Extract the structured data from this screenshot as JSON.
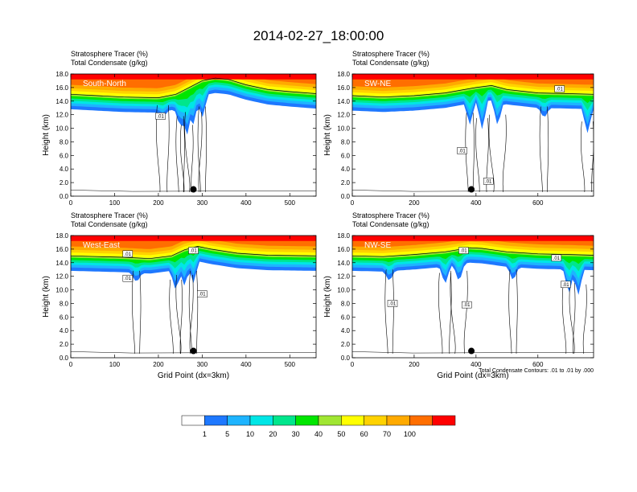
{
  "page_title": "2014-02-27_18:00:00",
  "colors": {
    "levels": [
      "#ffffff",
      "#1e78ff",
      "#1eb4ff",
      "#00e6e6",
      "#00e68c",
      "#00e600",
      "#a0e632",
      "#ffff00",
      "#ffd200",
      "#ffaa00",
      "#ff6e00",
      "#ff0000"
    ]
  },
  "colorbar": {
    "ticks": [
      "1",
      "5",
      "10",
      "20",
      "30",
      "40",
      "50",
      "60",
      "70",
      "100"
    ]
  },
  "footnote": "Total Condensate Contours: .01 to .01 by .000",
  "chart_data": [
    {
      "type": "heatmap",
      "panel_label": "South-North",
      "header_line1": "Stratosphere Tracer   (%)",
      "header_line2": "Total Condensate   (g/kg)",
      "ylabel": "Height (km)",
      "xlabel": "",
      "xlim": [
        0,
        560
      ],
      "ylim": [
        0,
        18
      ],
      "xticks": [
        "0",
        "100",
        "200",
        "300",
        "400",
        "500"
      ],
      "xtick_values": [
        0,
        100,
        200,
        300,
        400,
        500
      ],
      "yticks": [
        "0.0",
        "2.0",
        "4.0",
        "6.0",
        "8.0",
        "10.0",
        "12.0",
        "14.0",
        "16.0",
        "18.0"
      ],
      "marker": {
        "x": 280,
        "y": 1.0
      },
      "tropopause": [
        [
          0,
          14.6
        ],
        [
          60,
          14.4
        ],
        [
          120,
          14.2
        ],
        [
          200,
          14.1
        ],
        [
          240,
          14.6
        ],
        [
          270,
          15.6
        ],
        [
          300,
          16.6
        ],
        [
          330,
          17.0
        ],
        [
          360,
          16.8
        ],
        [
          400,
          16.0
        ],
        [
          450,
          15.3
        ],
        [
          500,
          15.0
        ],
        [
          560,
          14.7
        ]
      ],
      "dips": [
        [
          250,
          11.8
        ],
        [
          265,
          10.5
        ],
        [
          280,
          12.4
        ],
        [
          300,
          13.2
        ],
        [
          210,
          13.4
        ]
      ],
      "contour_labels": [
        {
          "text": ".01",
          "x": 205,
          "y": 11.8
        }
      ]
    },
    {
      "type": "heatmap",
      "panel_label": "SW-NE",
      "header_line1": "Stratosphere Tracer   (%)",
      "header_line2": "Total Condensate   (g/kg)",
      "ylabel": "Height (km)",
      "xlabel": "",
      "xlim": [
        0,
        780
      ],
      "ylim": [
        0,
        18
      ],
      "xticks": [
        "0",
        "200",
        "400",
        "600"
      ],
      "xtick_values": [
        0,
        200,
        400,
        600
      ],
      "yticks": [
        "0.0",
        "2.0",
        "4.0",
        "6.0",
        "8.0",
        "10.0",
        "12.0",
        "14.0",
        "16.0",
        "18.0"
      ],
      "marker": {
        "x": 385,
        "y": 1.0
      },
      "tropopause": [
        [
          0,
          14.4
        ],
        [
          100,
          14.2
        ],
        [
          200,
          14.4
        ],
        [
          300,
          14.8
        ],
        [
          400,
          15.6
        ],
        [
          450,
          15.9
        ],
        [
          500,
          15.3
        ],
        [
          600,
          14.8
        ],
        [
          700,
          14.7
        ],
        [
          780,
          14.6
        ]
      ],
      "dips": [
        [
          380,
          12.3
        ],
        [
          420,
          11.5
        ],
        [
          470,
          12.0
        ],
        [
          620,
          13.2
        ],
        [
          760,
          11.0
        ]
      ],
      "contour_labels": [
        {
          "text": ".01",
          "x": 670,
          "y": 15.8
        },
        {
          "text": ".01",
          "x": 355,
          "y": 6.7
        },
        {
          "text": ".01",
          "x": 440,
          "y": 2.2
        }
      ]
    },
    {
      "type": "heatmap",
      "panel_label": "West-East",
      "header_line1": "Stratosphere Tracer   (%)",
      "header_line2": "Total Condensate   (g/kg)",
      "ylabel": "Height (km)",
      "xlabel": "Grid Point (dx=3km)",
      "xlim": [
        0,
        560
      ],
      "ylim": [
        0,
        18
      ],
      "xticks": [
        "0",
        "100",
        "200",
        "300",
        "400",
        "500"
      ],
      "xtick_values": [
        0,
        100,
        200,
        300,
        400,
        500
      ],
      "yticks": [
        "0.0",
        "2.0",
        "4.0",
        "6.0",
        "8.0",
        "10.0",
        "12.0",
        "14.0",
        "16.0",
        "18.0"
      ],
      "marker": {
        "x": 280,
        "y": 1.0
      },
      "tropopause": [
        [
          0,
          14.6
        ],
        [
          60,
          14.5
        ],
        [
          120,
          14.4
        ],
        [
          180,
          14.2
        ],
        [
          230,
          14.6
        ],
        [
          260,
          15.5
        ],
        [
          290,
          16.0
        ],
        [
          320,
          15.6
        ],
        [
          380,
          15.0
        ],
        [
          450,
          14.7
        ],
        [
          560,
          14.6
        ]
      ],
      "dips": [
        [
          150,
          12.8
        ],
        [
          240,
          11.5
        ],
        [
          260,
          12.2
        ],
        [
          280,
          12.8
        ]
      ],
      "contour_labels": [
        {
          "text": ".01",
          "x": 130,
          "y": 15.3
        },
        {
          "text": ".01",
          "x": 130,
          "y": 11.7
        },
        {
          "text": ".01",
          "x": 280,
          "y": 15.8
        },
        {
          "text": ".01",
          "x": 300,
          "y": 9.4
        }
      ]
    },
    {
      "type": "heatmap",
      "panel_label": "NW-SE",
      "header_line1": "Stratosphere Tracer   (%)",
      "header_line2": "Total Condensate   (g/kg)",
      "ylabel": "Height (km)",
      "xlabel": "Grid Point (dx=3km)",
      "xlim": [
        0,
        780
      ],
      "ylim": [
        0,
        18
      ],
      "xticks": [
        "0",
        "200",
        "400",
        "600"
      ],
      "xtick_values": [
        0,
        200,
        400,
        600
      ],
      "yticks": [
        "0.0",
        "2.0",
        "4.0",
        "6.0",
        "8.0",
        "10.0",
        "12.0",
        "14.0",
        "16.0",
        "18.0"
      ],
      "marker": {
        "x": 385,
        "y": 1.0
      },
      "tropopause": [
        [
          0,
          14.6
        ],
        [
          100,
          14.5
        ],
        [
          200,
          14.8
        ],
        [
          300,
          15.2
        ],
        [
          380,
          15.8
        ],
        [
          420,
          15.7
        ],
        [
          500,
          15.2
        ],
        [
          600,
          14.9
        ],
        [
          700,
          14.8
        ],
        [
          780,
          14.7
        ]
      ],
      "dips": [
        [
          120,
          13.0
        ],
        [
          300,
          12.5
        ],
        [
          345,
          12.8
        ],
        [
          520,
          13.0
        ],
        [
          700,
          11.0
        ],
        [
          730,
          10.8
        ]
      ],
      "contour_labels": [
        {
          "text": ".01",
          "x": 360,
          "y": 15.8
        },
        {
          "text": ".01",
          "x": 660,
          "y": 14.7
        },
        {
          "text": ".01",
          "x": 690,
          "y": 10.8
        },
        {
          "text": ".01",
          "x": 130,
          "y": 8.0
        },
        {
          "text": ".01",
          "x": 370,
          "y": 7.8
        }
      ]
    }
  ]
}
